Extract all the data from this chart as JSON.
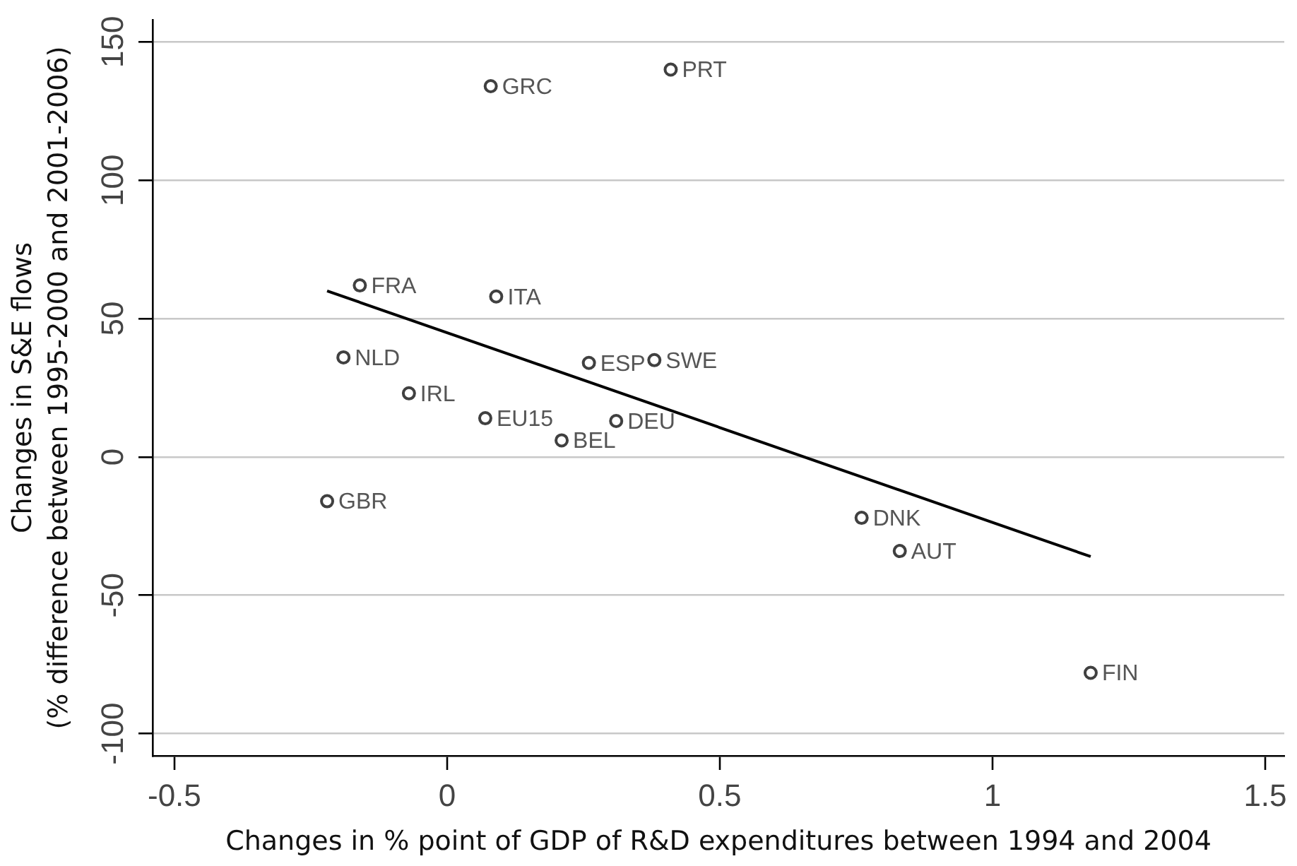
{
  "chart_data": {
    "type": "scatter",
    "xlabel": "Changes in % point of GDP of R&D expenditures between 1994 and 2004",
    "ylabel": "Changes in S&E flows\n(% difference between 1995-2000 and 2001-2006)",
    "series": [
      {
        "color": "#404040",
        "x": [
          -0.22,
          -0.19,
          -0.16,
          -0.07,
          0.07,
          0.08,
          0.09,
          0.21,
          0.26,
          0.31,
          0.38,
          0.41,
          0.76,
          0.83,
          1.18
        ],
        "values": [
          -16,
          36,
          62,
          23,
          14,
          134,
          58,
          6,
          34,
          13,
          35,
          140,
          -22,
          -34,
          -78
        ]
      },
      {
        "type": "line",
        "color": "#000000",
        "marker": "none",
        "x": [
          -0.22,
          1.18
        ],
        "values": [
          60,
          -36
        ]
      }
    ],
    "annotations": [
      {
        "text": "GBR",
        "x": -0.22,
        "y": -16
      },
      {
        "text": "NLD",
        "x": -0.19,
        "y": 36
      },
      {
        "text": "FRA",
        "x": -0.16,
        "y": 62
      },
      {
        "text": "IRL",
        "x": -0.07,
        "y": 23
      },
      {
        "text": "EU15",
        "x": 0.07,
        "y": 14
      },
      {
        "text": "GRC",
        "x": 0.08,
        "y": 134
      },
      {
        "text": "ITA",
        "x": 0.09,
        "y": 58
      },
      {
        "text": "BEL",
        "x": 0.21,
        "y": 6
      },
      {
        "text": "ESP",
        "x": 0.26,
        "y": 34
      },
      {
        "text": "DEU",
        "x": 0.31,
        "y": 13
      },
      {
        "text": "SWE",
        "x": 0.38,
        "y": 35
      },
      {
        "text": "PRT",
        "x": 0.41,
        "y": 140
      },
      {
        "text": "DNK",
        "x": 0.76,
        "y": -22
      },
      {
        "text": "AUT",
        "x": 0.83,
        "y": -34
      },
      {
        "text": "FIN",
        "x": 1.18,
        "y": -78
      }
    ],
    "xlim": [
      -0.54,
      1.535
    ],
    "xticks": [
      -0.5,
      0,
      0.5,
      1,
      1.5
    ],
    "ylim": [
      -108,
      158
    ],
    "yticks": [
      -100,
      -50,
      0,
      50,
      100,
      150
    ],
    "grid": "y",
    "marker": "circle"
  }
}
